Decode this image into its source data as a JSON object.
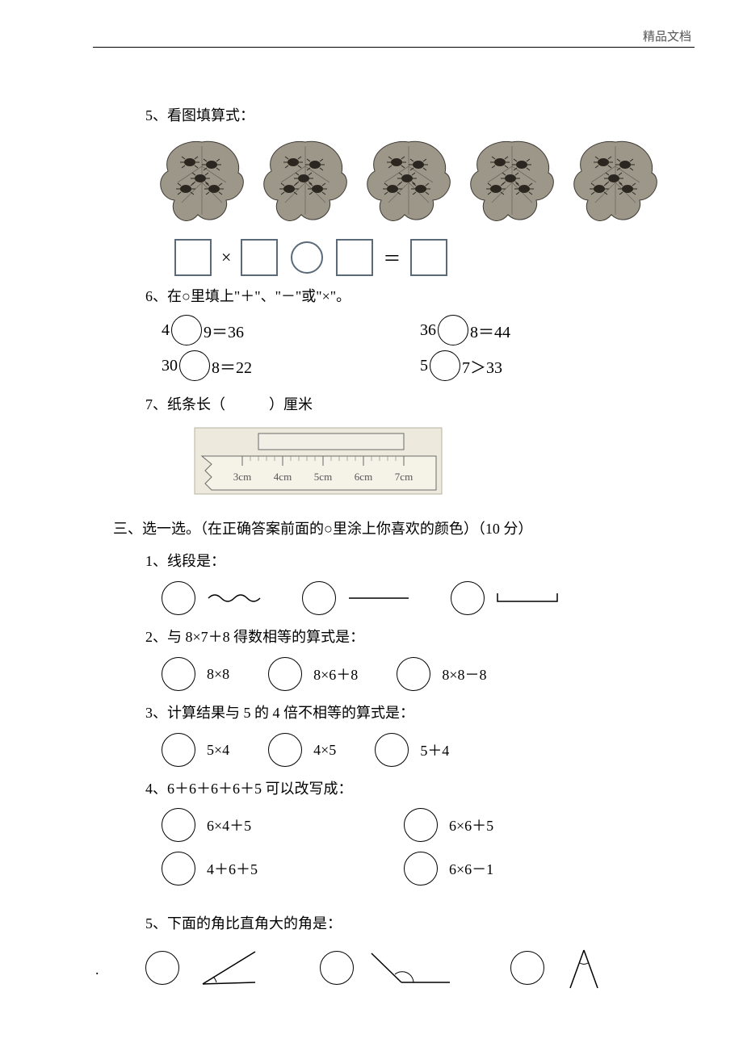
{
  "header": {
    "label": "精品文档"
  },
  "colors": {
    "leaf_fill": "#9d978a",
    "leaf_stroke": "#3e3a33",
    "bug": "#2b2620",
    "ruler_bg": "#ede9dc",
    "ruler_bar": "#f1efe6",
    "ruler_stroke": "#6a6a6a",
    "box_stroke": "#5a6a78",
    "text": "#000000"
  },
  "q5": {
    "label": "5、看图填算式：",
    "leaf_count": 5,
    "bug_per_leaf": 5,
    "times": "×",
    "equals": "＝"
  },
  "q6": {
    "label": "6、在○里填上\"＋\"、\"－\"或\"×\"。",
    "rows": [
      {
        "a": "4",
        "b": "9＝36",
        "c": "36",
        "d": "8＝44"
      },
      {
        "a": "30",
        "b": "8＝22",
        "c": "5",
        "d": "7＞33"
      }
    ]
  },
  "q7": {
    "label": "7、纸条长（　　　）厘米",
    "ruler": {
      "ticks": [
        "3cm",
        "4cm",
        "5cm",
        "6cm",
        "7cm"
      ],
      "bar_start": 3.4,
      "bar_end": 7.0
    }
  },
  "sec3": {
    "title": "三、选一选。（在正确答案前面的○里涂上你喜欢的颜色）（10 分）",
    "q1": {
      "label": "1、线段是：",
      "options": [
        "wavy",
        "straight",
        "bracket"
      ]
    },
    "q2": {
      "label": "2、与 8×7＋8 得数相等的算式是：",
      "options": [
        "8×8",
        "8×6＋8",
        "8×8－8"
      ]
    },
    "q3": {
      "label": "3、计算结果与 5 的 4 倍不相等的算式是：",
      "options": [
        "5×4",
        "4×5",
        "5＋4"
      ]
    },
    "q4": {
      "label": "4、6＋6＋6＋6＋5 可以改写成：",
      "options_col1": [
        "6×4＋5",
        "4＋6＋5"
      ],
      "options_col2": [
        "6×6＋5",
        "6×6－1"
      ]
    },
    "q5": {
      "label": "5、下面的角比直角大的角是：",
      "options": [
        "acute-up",
        "obtuse",
        "acute-narrow"
      ]
    }
  }
}
